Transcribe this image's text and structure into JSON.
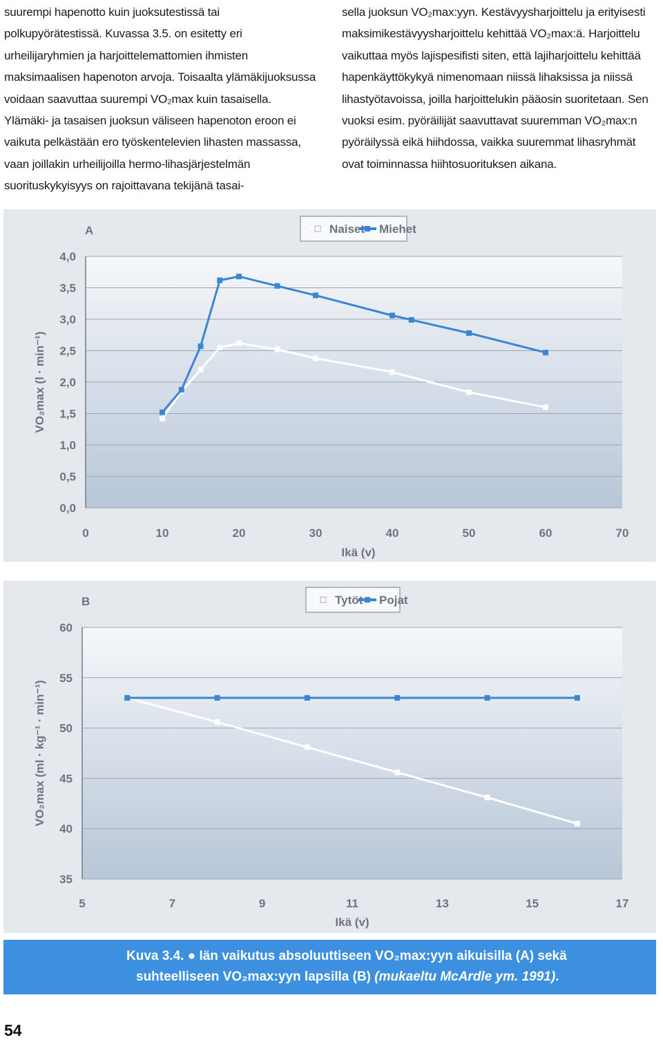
{
  "text": {
    "left_column": "suurempi hapenotto kuin juoksutestissä tai polkupyörätestissä. Kuvassa 3.5. on esitetty eri urheilijaryhmien ja harjoittelemattomien ihmisten maksimaalisen hapenoton arvoja. Toisaalta ylämäkijuoksussa voidaan saavuttaa suurempi VO₂max kuin tasaisella. Ylämäki- ja tasaisen juoksun väliseen hapenoton eroon ei vaikuta pelkästään ero työskentelevien lihasten massassa, vaan joillakin urheilijoilla hermo-lihasjärjestelmän suorituskykyisyys on rajoittavana tekijänä tasai-",
    "right_column": "sella juoksun VO₂max:yyn. Kestävyysharjoittelu ja erityisesti maksimikestävyysharjoittelu kehittää VO₂max:ä. Harjoittelu vaikuttaa myös lajispesifisti siten, että lajiharjoittelu kehittää hapenkäyttökykyä nimenomaan niissä lihaksissa ja niissä lihastyötavoissa, joilla harjoittelukin pääosin suoritetaan. Sen vuoksi esim. pyöräilijät saavuttavat suuremman VO₂max:n pyöräilyssä eikä hiihdossa, vaikka suuremmat lihasryhmät ovat toiminnassa hiihtosuorituksen aikana."
  },
  "caption": {
    "line1": "Kuva 3.4. ● Iän vaikutus absoluuttiseen VO₂max:yyn aikuisilla (A) sekä",
    "line2_main": "suhteelliseen VO₂max:yyn lapsilla (B) ",
    "line2_italic": "(mukaeltu McArdle ym. 1991)",
    "line2_end": "."
  },
  "page_number": "54",
  "colors": {
    "series_white": "#ffffff",
    "series_blue": "#3a86d6",
    "plot_top": "#f6f7f9",
    "plot_bottom": "#b7c6d8",
    "caption_bg": "#3d8fe0",
    "panel_bg": "#e5e8ec"
  },
  "chart_data": [
    {
      "type": "line",
      "panel_label": "A",
      "xlabel": "Ikä (v)",
      "ylabel": "VO₂max (l · min⁻¹)",
      "xlim": [
        0,
        70
      ],
      "ylim": [
        0,
        4
      ],
      "x_ticks": [
        "0",
        "10",
        "20",
        "30",
        "40",
        "50",
        "60",
        "70"
      ],
      "y_ticks": [
        "0,0",
        "0,5",
        "1,0",
        "1,5",
        "2,0",
        "2,5",
        "3,0",
        "3,5",
        "4,0"
      ],
      "legend_placement": "top-center",
      "grid": true,
      "series": [
        {
          "name": "Naiset",
          "x": [
            10,
            12.5,
            15,
            17.5,
            20,
            25,
            30,
            40,
            50,
            60
          ],
          "y": [
            1.42,
            1.85,
            2.2,
            2.55,
            2.62,
            2.52,
            2.38,
            2.16,
            1.84,
            1.6
          ]
        },
        {
          "name": "Miehet",
          "x": [
            10,
            12.5,
            15,
            17.5,
            20,
            25,
            30,
            40,
            42.5,
            50,
            60
          ],
          "y": [
            1.52,
            1.88,
            2.57,
            3.62,
            3.68,
            3.53,
            3.38,
            3.06,
            2.99,
            2.78,
            2.47
          ]
        }
      ]
    },
    {
      "type": "line",
      "panel_label": "B",
      "xlabel": "Ikä (v)",
      "ylabel": "VO₂max (ml · kg⁻¹ · min⁻¹)",
      "xlim": [
        5,
        17
      ],
      "ylim": [
        35,
        60
      ],
      "x_ticks": [
        "5",
        "7",
        "9",
        "11",
        "13",
        "15",
        "17"
      ],
      "y_ticks": [
        "35",
        "40",
        "45",
        "50",
        "55",
        "60"
      ],
      "legend_placement": "top-center",
      "grid": true,
      "series": [
        {
          "name": "Tytöt",
          "x": [
            6,
            8,
            10,
            12,
            14,
            16
          ],
          "y": [
            53.0,
            50.6,
            48.1,
            45.6,
            43.1,
            40.5
          ]
        },
        {
          "name": "Pojat",
          "x": [
            6,
            8,
            10,
            12,
            14,
            16
          ],
          "y": [
            53.0,
            53.0,
            53.0,
            53.0,
            53.0,
            53.0
          ]
        }
      ]
    }
  ]
}
